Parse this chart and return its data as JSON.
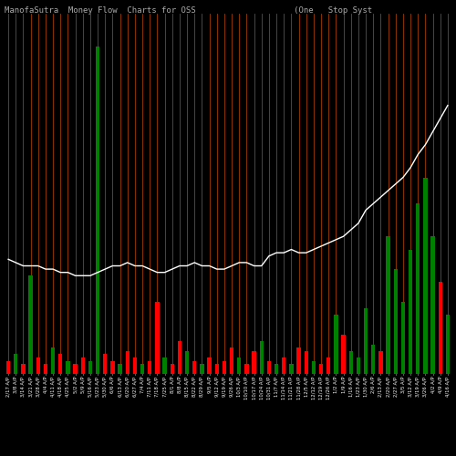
{
  "title": "ManofaSutra  Money Flow  Charts for OSS                    (One   Stop Syst",
  "background_color": "#000000",
  "n_bars": 60,
  "labels": [
    "2/17 A/P",
    "3/8 A/P",
    "3/14 A/P",
    "3/21 A/P",
    "3/28 A/P",
    "4/4 A/P",
    "4/11 A/P",
    "4/18 A/P",
    "4/25 A/P",
    "5/2 A/P",
    "5/9 A/P",
    "5/16 A/P",
    "5/23 A/P",
    "5/30 A/P",
    "6/6 A/P",
    "6/13 A/P",
    "6/20 A/P",
    "6/27 A/P",
    "7/4 A/P",
    "7/11 A/P",
    "7/18 A/P",
    "7/25 A/P",
    "8/1 A/P",
    "8/8 A/P",
    "8/15 A/P",
    "8/22 A/P",
    "8/29 A/P",
    "9/5 A/P",
    "9/12 A/P",
    "9/19 A/P",
    "9/26 A/P",
    "10/3 A/P",
    "10/10 A/P",
    "10/17 A/P",
    "10/24 A/P",
    "10/31 A/P",
    "11/7 A/P",
    "11/14 A/P",
    "11/21 A/P",
    "11/28 A/P",
    "12/5 A/P",
    "12/12 A/P",
    "12/19 A/P",
    "12/26 A/P",
    "1/2 A/P",
    "1/9 A/P",
    "1/16 A/P",
    "1/23 A/P",
    "1/30 A/P",
    "2/6 A/P",
    "2/13 A/P",
    "2/20 A/P",
    "2/27 A/P",
    "3/5 A/P",
    "3/12 A/P",
    "3/19 A/P",
    "3/26 A/P",
    "4/2 A/P",
    "4/9 A/P",
    "4/16 A/P"
  ],
  "bar_heights": [
    4,
    6,
    3,
    30,
    5,
    3,
    8,
    6,
    4,
    3,
    5,
    4,
    100,
    6,
    4,
    3,
    7,
    5,
    3,
    4,
    22,
    5,
    3,
    10,
    7,
    4,
    3,
    5,
    3,
    4,
    8,
    5,
    3,
    7,
    10,
    4,
    3,
    5,
    3,
    8,
    7,
    4,
    3,
    5,
    18,
    12,
    7,
    5,
    20,
    9,
    7,
    42,
    32,
    22,
    38,
    52,
    60,
    42,
    28,
    18
  ],
  "bar_colors": [
    "red",
    "green",
    "red",
    "green",
    "red",
    "red",
    "green",
    "red",
    "green",
    "red",
    "red",
    "green",
    "green",
    "red",
    "red",
    "green",
    "red",
    "red",
    "green",
    "red",
    "red",
    "green",
    "red",
    "red",
    "green",
    "red",
    "green",
    "red",
    "red",
    "red",
    "red",
    "green",
    "red",
    "red",
    "green",
    "red",
    "green",
    "red",
    "green",
    "red",
    "red",
    "green",
    "red",
    "red",
    "green",
    "red",
    "green",
    "green",
    "green",
    "green",
    "red",
    "green",
    "green",
    "green",
    "green",
    "green",
    "green",
    "green",
    "red",
    "green"
  ],
  "line_values": [
    35,
    34,
    33,
    33,
    33,
    32,
    32,
    31,
    31,
    30,
    30,
    30,
    31,
    32,
    33,
    33,
    34,
    33,
    33,
    32,
    31,
    31,
    32,
    33,
    33,
    34,
    33,
    33,
    32,
    32,
    33,
    34,
    34,
    33,
    33,
    36,
    37,
    37,
    38,
    37,
    37,
    38,
    39,
    40,
    41,
    42,
    44,
    46,
    50,
    52,
    54,
    56,
    58,
    60,
    63,
    67,
    70,
    74,
    78,
    82
  ],
  "orange_line_color": "#bb4400",
  "title_color": "#aaaaaa",
  "title_fontsize": 6.5,
  "axis_label_fontsize": 3.8,
  "figsize": [
    5.0,
    5.0
  ],
  "dpi": 100
}
